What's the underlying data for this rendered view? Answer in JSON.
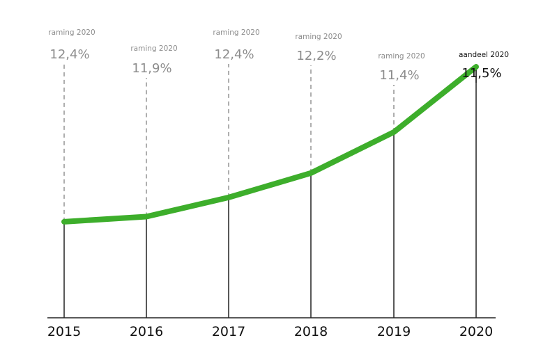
{
  "chart_data": {
    "type": "line",
    "title": "",
    "xlabel": "",
    "ylabel": "",
    "x": [
      "2015",
      "2016",
      "2017",
      "2018",
      "2019",
      "2020"
    ],
    "values": [
      7.5,
      7.9,
      9.4,
      11.3,
      14.5,
      19.6
    ],
    "ylim": [
      0,
      24
    ],
    "line_color": "#3dae2b",
    "annotations": [
      {
        "label": "raming 2020",
        "value": "12,4%"
      },
      {
        "label": "raming 2020",
        "value": "11,9%"
      },
      {
        "label": "raming 2020",
        "value": "12,4%"
      },
      {
        "label": "raming 2020",
        "value": "12,2%"
      },
      {
        "label": "raming 2020",
        "value": "11,4%"
      },
      {
        "label": "aandeel 2020",
        "value": "11,5%"
      }
    ],
    "annotation_colors": {
      "forecast": "#8c8c8c",
      "actual": "#111111"
    },
    "grid": false,
    "legend": "none"
  }
}
